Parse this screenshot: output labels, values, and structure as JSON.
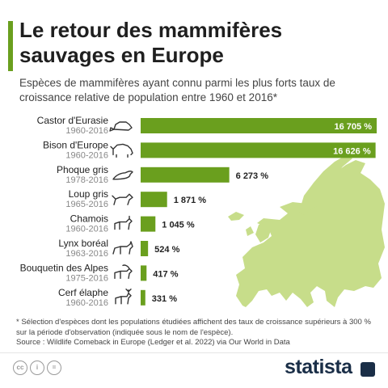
{
  "header": {
    "title": "Le retour des mammifères sauvages en Europe",
    "subtitle": "Espèces de mammifères ayant connu parmi les plus forts taux de croissance relative de population entre 1960 et 2016*"
  },
  "chart_data": {
    "type": "bar",
    "orientation": "horizontal",
    "categories": [
      "Castor d'Eurasie",
      "Bison d'Europe",
      "Phoque gris",
      "Loup gris",
      "Chamois",
      "Lynx boréal",
      "Bouquetin des Alpes",
      "Cerf élaphe"
    ],
    "periods": [
      "1960-2016",
      "1960-2016",
      "1978-2016",
      "1965-2016",
      "1960-2016",
      "1963-2016",
      "1975-2016",
      "1960-2016"
    ],
    "values": [
      16705,
      16626,
      6273,
      1871,
      1045,
      524,
      417,
      331
    ],
    "value_labels": [
      "16 705 %",
      "16 626 %",
      "6 273 %",
      "1 871 %",
      "1 045 %",
      "524 %",
      "417 %",
      "331 %"
    ],
    "icons": [
      "beaver-icon",
      "bison-icon",
      "seal-icon",
      "wolf-icon",
      "chamois-icon",
      "lynx-icon",
      "ibex-icon",
      "deer-icon"
    ],
    "bar_color": "#6a9f1e",
    "map_color": "#c7dd8a"
  },
  "footnote": "* Sélection d'espèces dont les populations étudiées affichent des taux de croissance supérieurs à 300 % sur la période d'observation (indiquée sous le nom de l'espèce).",
  "source": "Source : Wildlife Comeback in Europe (Ledger et al. 2022) via Our World in Data",
  "footer": {
    "license_icons": [
      "cc-icon",
      "by-icon",
      "nd-icon"
    ],
    "license_labels": [
      "cc",
      "i",
      "="
    ],
    "brand": "statista",
    "brand_color": "#1a2e47"
  }
}
